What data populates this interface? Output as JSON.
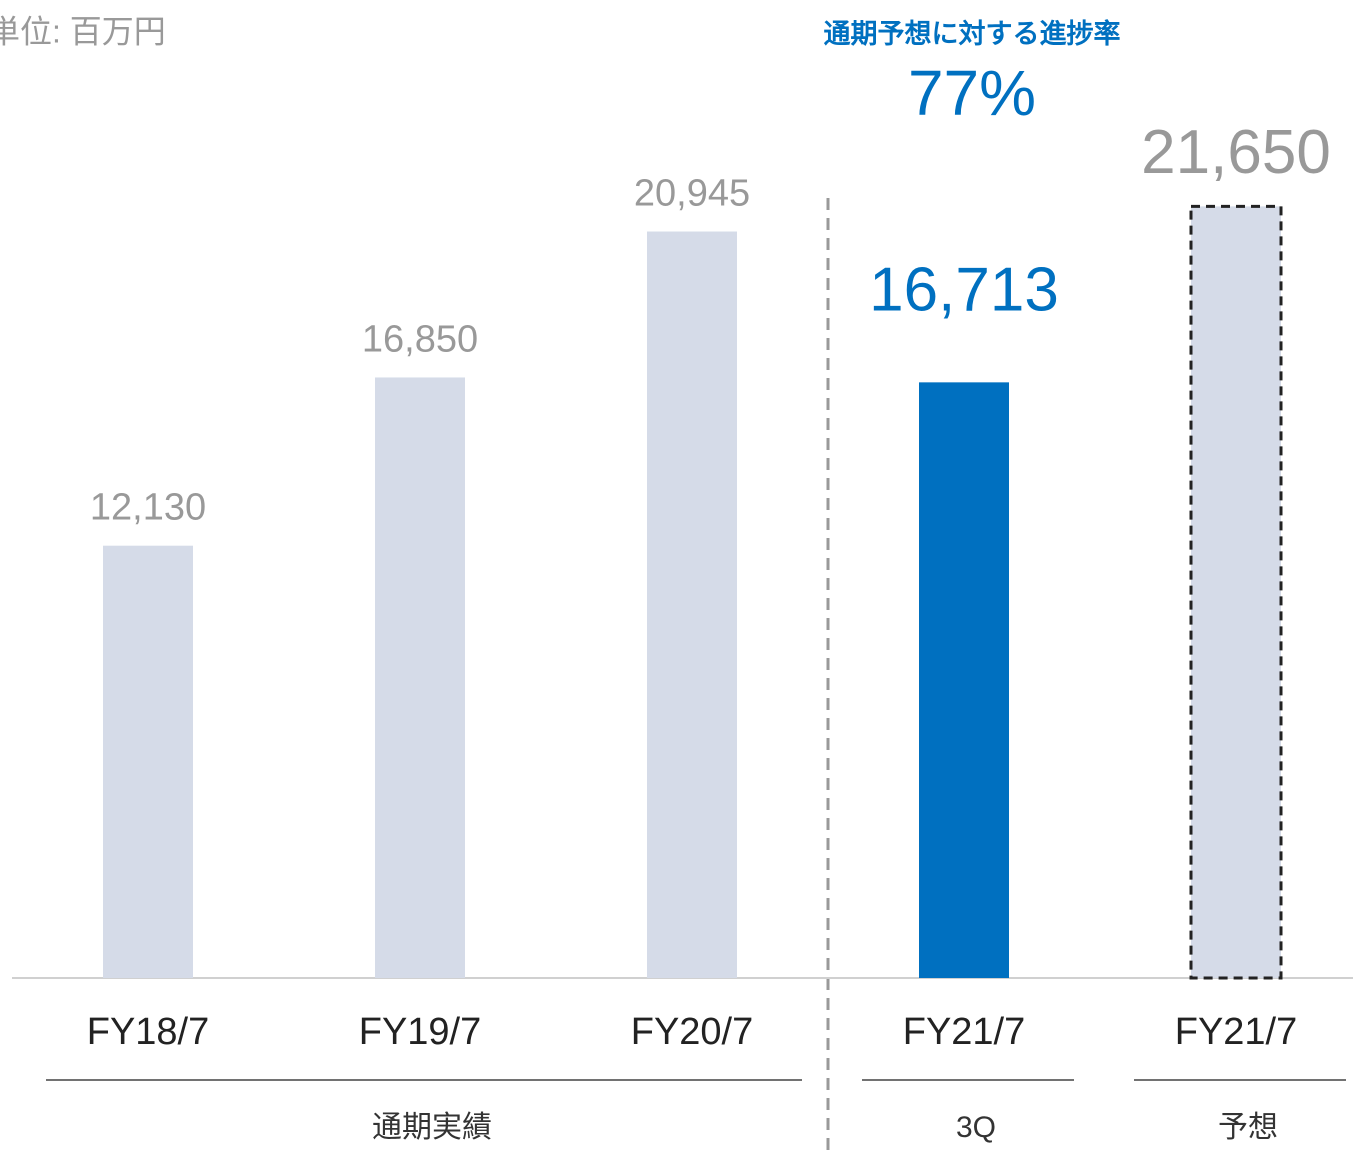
{
  "chart_data": {
    "type": "bar",
    "unit_label": "単位: 百万円",
    "annotation_title": "通期予想に対する進捗率",
    "annotation_value": "77%",
    "categories": [
      "FY18/7",
      "FY19/7",
      "FY20/7",
      "FY21/7",
      "FY21/7"
    ],
    "category_groups": [
      "通期実績",
      "通期実績",
      "通期実績",
      "3Q",
      "予想"
    ],
    "values": [
      12130,
      16850,
      20945,
      16713,
      21650
    ],
    "value_labels": [
      "12,130",
      "16,850",
      "20,945",
      "16,713",
      "21,650"
    ],
    "colors": [
      "#d5dbe8",
      "#d5dbe8",
      "#d5dbe8",
      "#0070c0",
      "#d5dbe8"
    ],
    "label_colors": [
      "#999999",
      "#999999",
      "#999999",
      "#0070c0",
      "#999999"
    ],
    "bar_styles": [
      "solid",
      "solid",
      "solid",
      "solid",
      "dashed"
    ],
    "annotation_color": "#0070c0",
    "ylim": [
      0,
      25000
    ]
  }
}
